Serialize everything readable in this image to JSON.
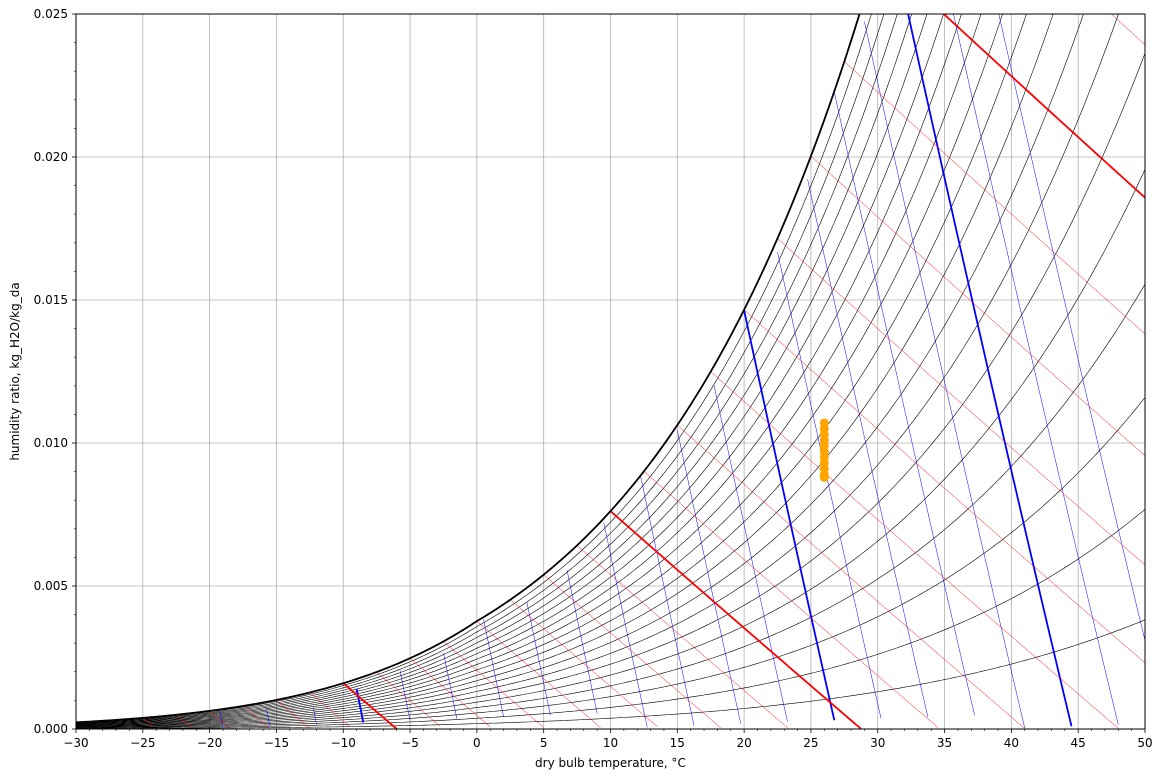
{
  "chart_data": {
    "type": "scatter",
    "title": "",
    "xlabel": "dry bulb temperature, °C",
    "ylabel": "humidity ratio, kg_H2O/kg_da",
    "xlim": [
      -30,
      50
    ],
    "ylim": [
      0,
      0.025
    ],
    "x_ticks": [
      "−30",
      "−25",
      "−20",
      "−15",
      "−10",
      "−5",
      "0",
      "5",
      "10",
      "15",
      "20",
      "25",
      "30",
      "35",
      "40",
      "45",
      "50"
    ],
    "y_ticks": [
      "0.000",
      "0.005",
      "0.010",
      "0.015",
      "0.020",
      "0.025"
    ],
    "grid": true,
    "pressure_kpa": 101.325,
    "saturation_color": "#000000",
    "rh_curves": {
      "values_pct": [
        5,
        10,
        15,
        20,
        25,
        30,
        35,
        40,
        45,
        50,
        55,
        60,
        65,
        70,
        75,
        80,
        85,
        90,
        95
      ],
      "color": "#000000"
    },
    "wet_bulb_lines": {
      "values_c": [
        -25,
        -22.5,
        -20,
        -17.5,
        -15,
        -12.5,
        -10,
        -7.5,
        -5,
        -2.5,
        0,
        2.5,
        5,
        7.5,
        10,
        12.5,
        15,
        17.5,
        20,
        22.5,
        25,
        27.5,
        30,
        32.5,
        35,
        37.5,
        40,
        42.5
      ],
      "major_values_c": [
        -10,
        10,
        30
      ],
      "color": "#ff0000"
    },
    "specific_volume_lines": {
      "values_m3kg": [
        0.72,
        0.73,
        0.74,
        0.75,
        0.76,
        0.77,
        0.78,
        0.79,
        0.8,
        0.81,
        0.82,
        0.83,
        0.84,
        0.85,
        0.86,
        0.87,
        0.88,
        0.89,
        0.9,
        0.91,
        0.92
      ],
      "major_values_m3kg": [
        0.75,
        0.85,
        0.9
      ],
      "color": "#0000ff"
    },
    "series": [
      {
        "color": "#ffa500",
        "points": [
          [
            26.0,
            0.0107
          ],
          [
            26.0,
            0.0105
          ],
          [
            26.0,
            0.0103
          ],
          [
            26.0,
            0.0101
          ],
          [
            26.0,
            0.0099
          ],
          [
            26.0,
            0.0097
          ],
          [
            26.0,
            0.0095
          ],
          [
            26.0,
            0.0093
          ],
          [
            26.0,
            0.0091
          ],
          [
            26.0,
            0.0089
          ],
          [
            26.0,
            0.0088
          ]
        ]
      }
    ]
  }
}
